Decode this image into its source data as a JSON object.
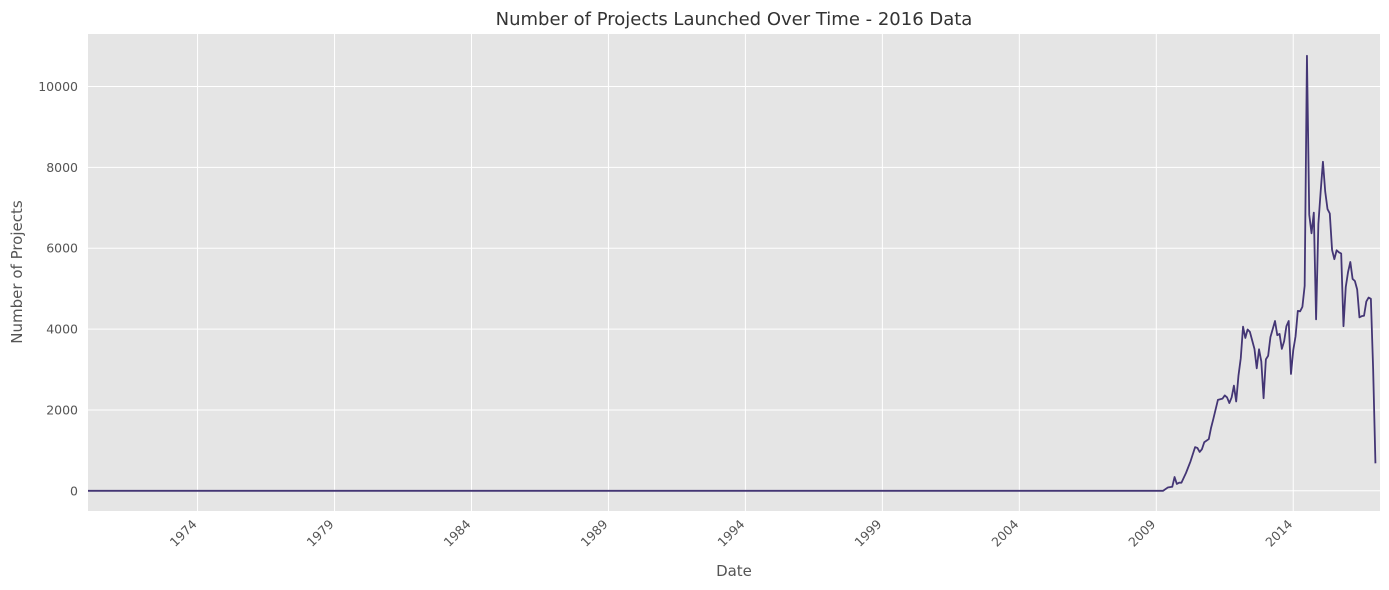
{
  "chart_data": {
    "type": "line",
    "title": "Number of Projects Launched Over Time - 2016 Data",
    "xlabel": "Date",
    "ylabel": "Number of Projects",
    "x_range": [
      "1970-01",
      "2017-03"
    ],
    "ylim": [
      -500,
      11300
    ],
    "x_ticks": [
      "1974",
      "1979",
      "1984",
      "1989",
      "1994",
      "1999",
      "2004",
      "2009",
      "2014"
    ],
    "y_ticks": [
      "0",
      "2000",
      "4000",
      "6000",
      "8000",
      "10000"
    ],
    "grid": true,
    "colors": {
      "background": "#e5e5e5",
      "grid": "#ffffff",
      "line": "#443675"
    },
    "series": [
      {
        "x": [
          "1970-01",
          "2009-04",
          "2009-06",
          "2009-08",
          "2009-09",
          "2009-10",
          "2009-11",
          "2009-12",
          "2010-02",
          "2010-04",
          "2010-06",
          "2010-07",
          "2010-08",
          "2010-09",
          "2010-10",
          "2010-12",
          "2011-01",
          "2011-02",
          "2011-04",
          "2011-06",
          "2011-07",
          "2011-08",
          "2011-09",
          "2011-10",
          "2011-11",
          "2011-12",
          "2012-01",
          "2012-02",
          "2012-03",
          "2012-04",
          "2012-05",
          "2012-06",
          "2012-07",
          "2012-08",
          "2012-09",
          "2012-10",
          "2012-11",
          "2012-12",
          "2013-01",
          "2013-02",
          "2013-03",
          "2013-04",
          "2013-05",
          "2013-06",
          "2013-07",
          "2013-08",
          "2013-09",
          "2013-10",
          "2013-11",
          "2013-12",
          "2014-01",
          "2014-02",
          "2014-03",
          "2014-04",
          "2014-05",
          "2014-06",
          "2014-07",
          "2014-08",
          "2014-09",
          "2014-10",
          "2014-11",
          "2014-12",
          "2015-01",
          "2015-02",
          "2015-03",
          "2015-04",
          "2015-05",
          "2015-06",
          "2015-07",
          "2015-08",
          "2015-09",
          "2015-10",
          "2015-11",
          "2015-12",
          "2016-01",
          "2016-02",
          "2016-03",
          "2016-04",
          "2016-05",
          "2016-06",
          "2016-07",
          "2016-08",
          "2016-09",
          "2016-10",
          "2016-11",
          "2016-12",
          "2017-01"
        ],
        "values": [
          0,
          0,
          80,
          100,
          340,
          170,
          200,
          200,
          440,
          730,
          1080,
          1060,
          960,
          1030,
          1200,
          1280,
          1560,
          1780,
          2250,
          2280,
          2360,
          2310,
          2170,
          2310,
          2600,
          2210,
          2850,
          3280,
          4060,
          3780,
          3990,
          3930,
          3720,
          3510,
          3030,
          3500,
          3200,
          2290,
          3250,
          3340,
          3800,
          4000,
          4200,
          3850,
          3880,
          3510,
          3700,
          4070,
          4200,
          2890,
          3480,
          3820,
          4450,
          4440,
          4550,
          5070,
          10760,
          6830,
          6370,
          6880,
          4240,
          6600,
          7400,
          8140,
          7400,
          6970,
          6860,
          5960,
          5730,
          5950,
          5900,
          5870,
          4070,
          5040,
          5410,
          5660,
          5240,
          5190,
          4980,
          4290,
          4320,
          4330,
          4680,
          4780,
          4750,
          3000,
          680
        ]
      }
    ]
  }
}
